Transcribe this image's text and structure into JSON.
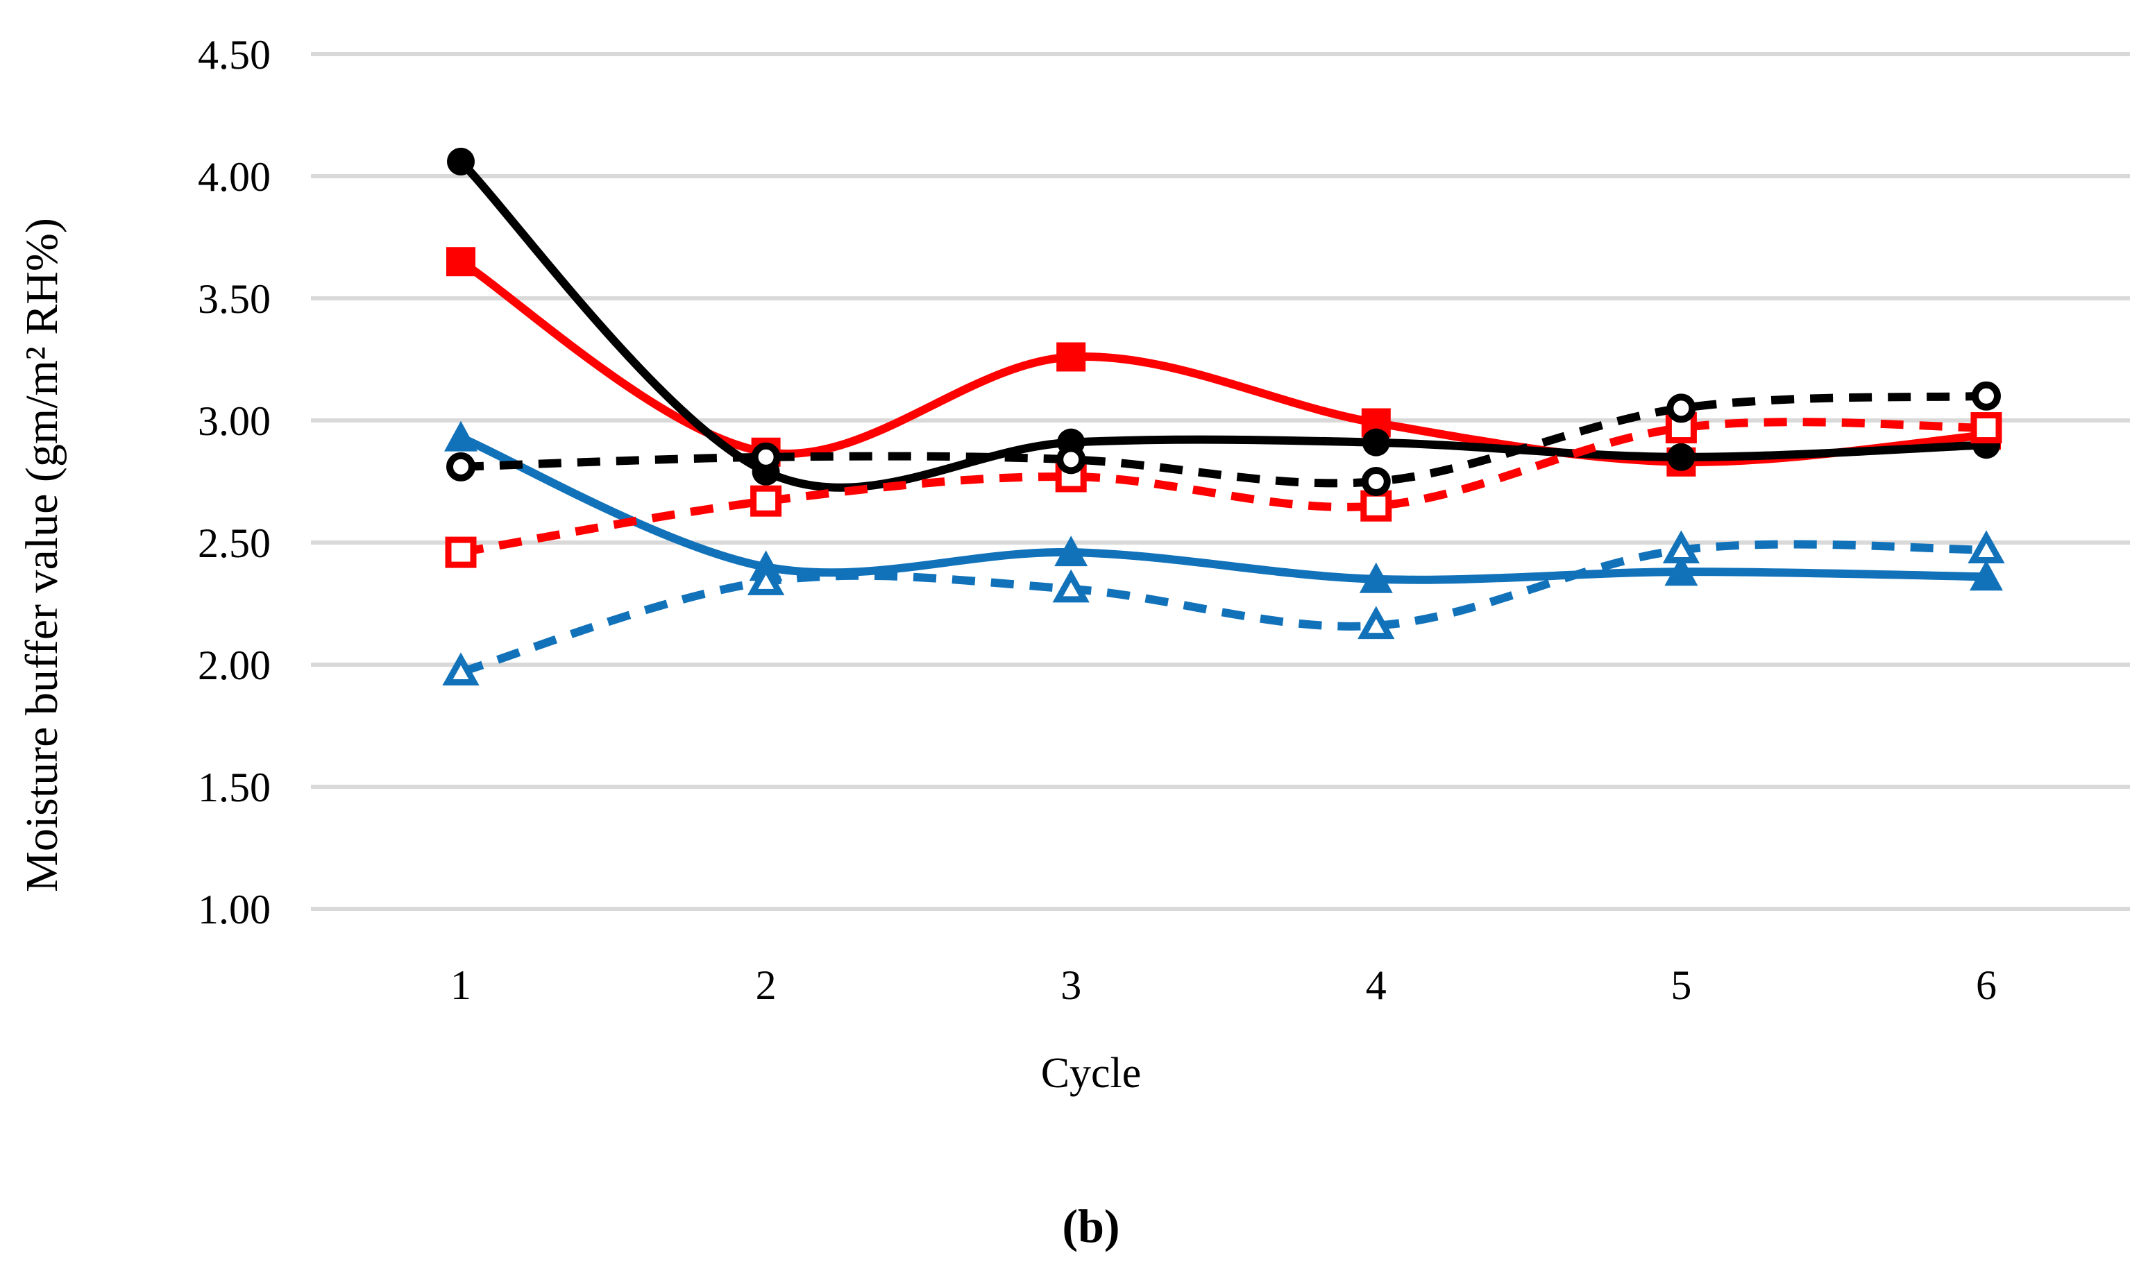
{
  "chart_data": {
    "type": "line",
    "title": "",
    "xlabel": "Cycle",
    "ylabel": "Moisture buffer value (gm/m² RH%)",
    "caption": "(b)",
    "x_categories": [
      "1",
      "2",
      "3",
      "4",
      "5",
      "6"
    ],
    "y_axis": {
      "min": 1.0,
      "max": 4.5,
      "step": 0.5,
      "tick_labels": [
        "4.50",
        "4.00",
        "3.50",
        "3.00",
        "2.50",
        "2.00",
        "1.50",
        "1.00"
      ],
      "tick_values": [
        4.5,
        4.0,
        3.5,
        3.0,
        2.5,
        2.0,
        1.5,
        1.0
      ]
    },
    "grid": {
      "visible": true,
      "color": "#D9D9D9"
    },
    "legend": {
      "visible": false
    },
    "line_smoothing": true,
    "colors": {
      "black": "#000000",
      "red": "#FF0000",
      "blue": "#1172BA"
    },
    "series": [
      {
        "name": "red-solid-filled-square",
        "color": "#FF0000",
        "line": "solid",
        "marker": "square-filled",
        "values": [
          3.65,
          2.87,
          3.26,
          2.99,
          2.83,
          2.94
        ]
      },
      {
        "name": "blue-solid-filled-triangle",
        "color": "#1172BA",
        "line": "solid",
        "marker": "triangle-filled",
        "values": [
          2.93,
          2.4,
          2.46,
          2.35,
          2.38,
          2.36
        ]
      },
      {
        "name": "black-solid-filled-circle",
        "color": "#000000",
        "line": "solid",
        "marker": "circle-filled",
        "values": [
          4.06,
          2.79,
          2.91,
          2.91,
          2.85,
          2.9
        ]
      },
      {
        "name": "red-dashed-open-square",
        "color": "#FF0000",
        "line": "dashed",
        "marker": "square-open",
        "values": [
          2.46,
          2.67,
          2.77,
          2.65,
          2.97,
          2.97
        ]
      },
      {
        "name": "blue-dashed-open-triangle",
        "color": "#1172BA",
        "line": "dashed",
        "marker": "triangle-open",
        "values": [
          1.97,
          2.34,
          2.31,
          2.16,
          2.47,
          2.47
        ]
      },
      {
        "name": "black-dashed-open-circle",
        "color": "#000000",
        "line": "dashed",
        "marker": "circle-open",
        "values": [
          2.81,
          2.85,
          2.84,
          2.75,
          3.05,
          3.1
        ]
      }
    ]
  }
}
